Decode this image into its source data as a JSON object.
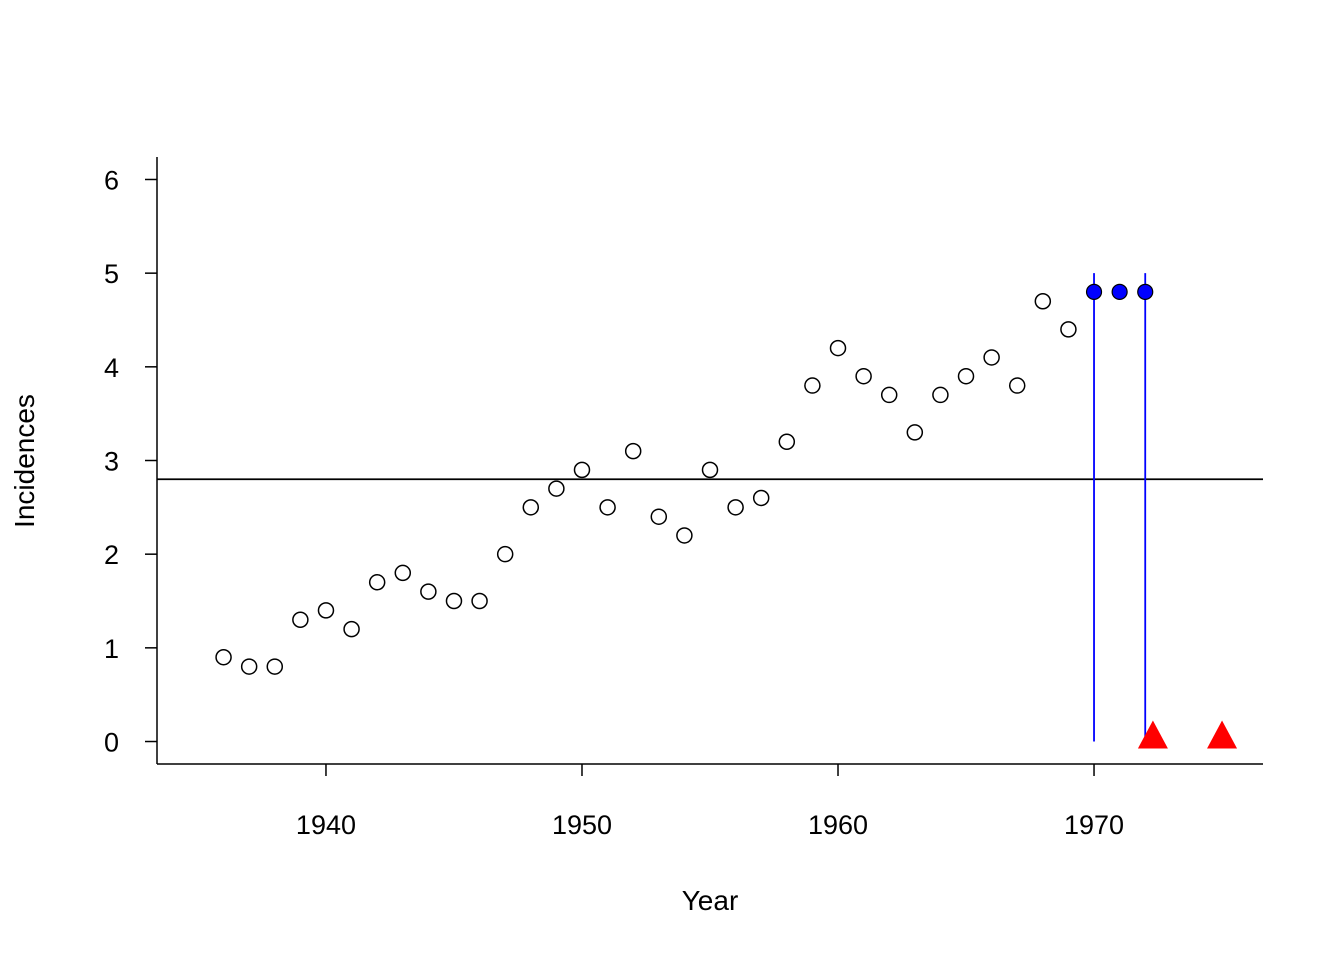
{
  "chart_data": {
    "type": "scatter",
    "title": "",
    "xlabel": "Year",
    "ylabel": "Incidences",
    "xlim": [
      1933.4,
      1976.6
    ],
    "ylim": [
      -0.24,
      6.24
    ],
    "x_ticks": [
      1940,
      1950,
      1960,
      1970
    ],
    "y_ticks": [
      0,
      1,
      2,
      3,
      4,
      5,
      6
    ],
    "grid": false,
    "legend": "none",
    "series": [
      {
        "marker": "open-circle",
        "color": "#000000",
        "points": [
          [
            1936,
            0.9
          ],
          [
            1937,
            0.8
          ],
          [
            1938,
            0.8
          ],
          [
            1939,
            1.3
          ],
          [
            1940,
            1.4
          ],
          [
            1941,
            1.2
          ],
          [
            1942,
            1.7
          ],
          [
            1943,
            1.8
          ],
          [
            1944,
            1.6
          ],
          [
            1945,
            1.5
          ],
          [
            1946,
            1.5
          ],
          [
            1947,
            2.0
          ],
          [
            1948,
            2.5
          ],
          [
            1949,
            2.7
          ],
          [
            1950,
            2.9
          ],
          [
            1951,
            2.5
          ],
          [
            1952,
            3.1
          ],
          [
            1953,
            2.4
          ],
          [
            1954,
            2.2
          ],
          [
            1955,
            2.9
          ],
          [
            1956,
            2.5
          ],
          [
            1957,
            2.6
          ],
          [
            1958,
            3.2
          ],
          [
            1959,
            3.8
          ],
          [
            1960,
            4.2
          ],
          [
            1961,
            3.9
          ],
          [
            1962,
            3.7
          ],
          [
            1963,
            3.3
          ],
          [
            1964,
            3.7
          ],
          [
            1965,
            3.9
          ],
          [
            1966,
            4.1
          ],
          [
            1967,
            3.8
          ],
          [
            1968,
            4.7
          ],
          [
            1969,
            4.4
          ]
        ]
      },
      {
        "marker": "filled-circle",
        "color": "#0000ff",
        "points": [
          [
            1970,
            4.8
          ],
          [
            1971,
            4.8
          ],
          [
            1972,
            4.8
          ]
        ]
      },
      {
        "marker": "filled-triangle",
        "color": "#ff0000",
        "points": [
          [
            1972.3,
            0.0
          ],
          [
            1975.0,
            0.0
          ]
        ]
      }
    ],
    "reference_lines": [
      {
        "orientation": "horizontal",
        "value": 2.8,
        "color": "#000000"
      },
      {
        "orientation": "vertical",
        "value": 1970,
        "from": 0,
        "to": 5,
        "color": "#0000ff"
      },
      {
        "orientation": "vertical",
        "value": 1972,
        "from": 0,
        "to": 5,
        "color": "#0000ff"
      }
    ]
  }
}
